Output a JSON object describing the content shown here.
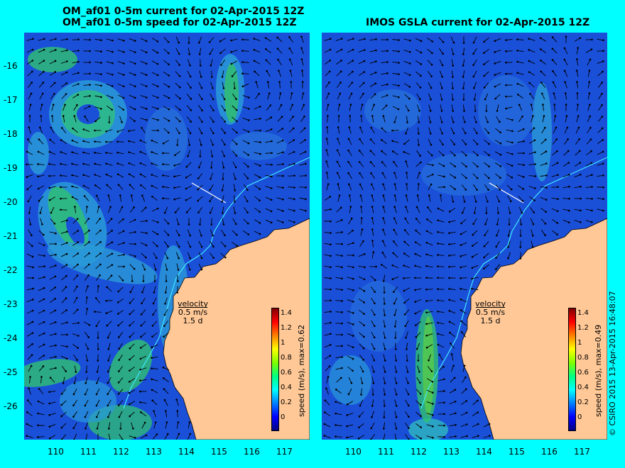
{
  "left": {
    "title1": "OM_af01 0-5m current for 02-Apr-2015 12Z",
    "title2": "OM_af01 0-5m speed for 02-Apr-2015 12Z",
    "velocity_label": "velocity",
    "velocity_value": "0.5 m/s",
    "velocity_days": "1.5 d",
    "colorbar_label": "speed (m/s), max=0.62"
  },
  "right": {
    "title": "IMOS GSLA current for 02-Apr-2015 12Z",
    "velocity_label": "velocity",
    "velocity_value": "0.5 m/s",
    "velocity_days": "1.5 d",
    "colorbar_label": "speed (m/s), max=0.49"
  },
  "lat_ticks": [
    "-16",
    "-17",
    "-18",
    "-19",
    "-20",
    "-21",
    "-22",
    "-23",
    "-24",
    "-25",
    "-26"
  ],
  "lon_ticks": [
    "110",
    "111",
    "112",
    "113",
    "114",
    "115",
    "116",
    "117"
  ],
  "colorbar_ticks": [
    "1.4",
    "1.2",
    "1",
    "0.8",
    "0.6",
    "0.4",
    "0.2",
    "0"
  ],
  "credit": "© CSIRO 2015   13-Apr-2015 16:48:07",
  "colors": {
    "background": "#00ffff",
    "ocean": "#1a4fd8",
    "land": "#ffc896",
    "coast_line": "#00e0ff"
  }
}
